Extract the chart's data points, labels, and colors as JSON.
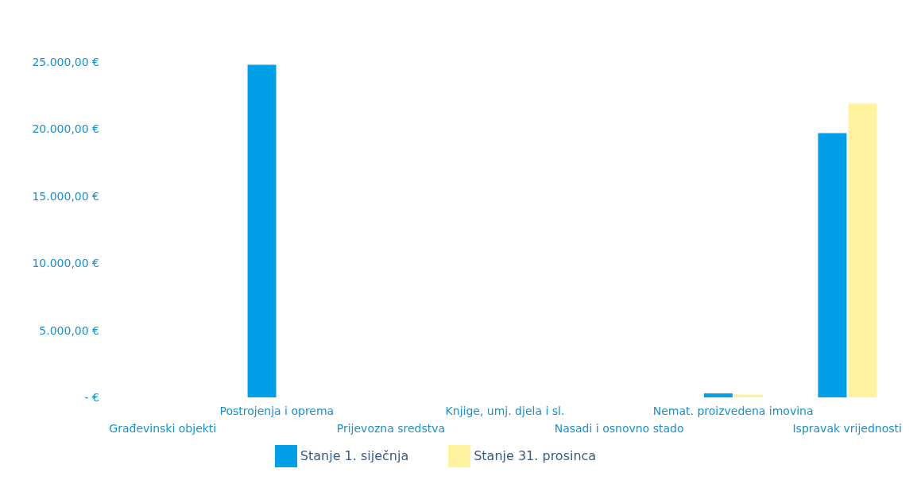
{
  "chart_data": {
    "type": "bar",
    "categories": [
      "Građevinski objekti",
      "Postrojenja i oprema",
      "Prijevozna sredstva",
      "Knjige, umj. djela i sl.",
      "Nasadi i osnovno stado",
      "Nemat. proizvedena imovina",
      "Ispravak vrijednosti"
    ],
    "series": [
      {
        "name": "Stanje 1. siječnja",
        "color": "#009fe8",
        "values": [
          0,
          24800,
          0,
          0,
          0,
          300,
          19700
        ]
      },
      {
        "name": "Stanje 31. prosinca",
        "color": "#fff3a0",
        "values": [
          0,
          0,
          0,
          0,
          0,
          200,
          21900
        ]
      }
    ],
    "ylim": [
      0,
      25000
    ],
    "yticks": [
      {
        "value": 0,
        "label": "-   €"
      },
      {
        "value": 5000,
        "label": "5.000,00 €"
      },
      {
        "value": 10000,
        "label": "10.000,00 €"
      },
      {
        "value": 15000,
        "label": "15.000,00 €"
      },
      {
        "value": 20000,
        "label": "20.000,00 €"
      },
      {
        "value": 25000,
        "label": "25.000,00 €"
      }
    ],
    "grid": false,
    "legend": "bottom"
  }
}
